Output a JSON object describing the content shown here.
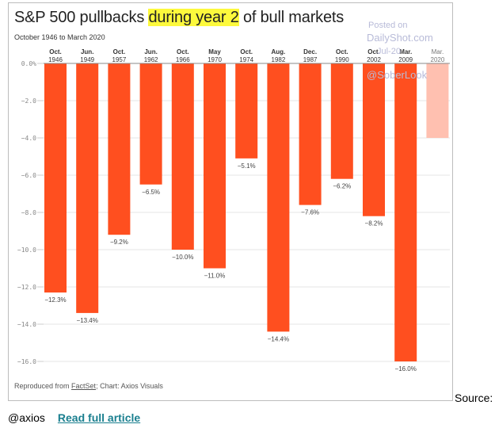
{
  "chart_data": {
    "type": "bar",
    "title_parts": [
      "S&P 500 pullbacks ",
      "during year 2",
      " of bull markets"
    ],
    "subtitle": "October 1946 to March 2020",
    "categories": [
      {
        "month": "Oct.",
        "year": "1946"
      },
      {
        "month": "Jun.",
        "year": "1949"
      },
      {
        "month": "Oct.",
        "year": "1957"
      },
      {
        "month": "Jun.",
        "year": "1962"
      },
      {
        "month": "Oct.",
        "year": "1966"
      },
      {
        "month": "May",
        "year": "1970"
      },
      {
        "month": "Oct.",
        "year": "1974"
      },
      {
        "month": "Aug.",
        "year": "1982"
      },
      {
        "month": "Dec.",
        "year": "1987"
      },
      {
        "month": "Oct.",
        "year": "1990"
      },
      {
        "month": "Oct.",
        "year": "2002"
      },
      {
        "month": "Mar.",
        "year": "2009"
      },
      {
        "month": "Mar.",
        "year": "2020"
      }
    ],
    "values": [
      -12.3,
      -13.4,
      -9.2,
      -6.5,
      -10.0,
      -11.0,
      -5.1,
      -14.4,
      -7.6,
      -6.2,
      -8.2,
      -16.0,
      -4.0
    ],
    "data_labels": [
      "−12.3%",
      "−13.4%",
      "−9.2%",
      "−6.5%",
      "−10.0%",
      "−11.0%",
      "−5.1%",
      "−14.4%",
      "−7.6%",
      "−6.2%",
      "−8.2%",
      "−16.0%",
      ""
    ],
    "highlight_last_light": true,
    "yticks": [
      0,
      -2,
      -4,
      -6,
      -8,
      -10,
      -12,
      -14,
      -16
    ],
    "ytick_labels": [
      "0.0%",
      "−2.0",
      "−4.0",
      "−6.0",
      "−8.0",
      "−10.0",
      "−12.0",
      "−14.0",
      "−16.0"
    ],
    "ylim": [
      -16.5,
      0
    ],
    "xlabel": "",
    "ylabel": "",
    "grid": true,
    "colors": {
      "bar": "#ff4f1f",
      "bar_light": "#ffc0b0",
      "highlight": "#fdf93c"
    }
  },
  "footer": {
    "prefix": "Reproduced from ",
    "link": "FactSet",
    "suffix": "; Chart: Axios Visuals"
  },
  "watermark": {
    "line1": "Posted on",
    "line2": "DailyShot.com",
    "line3": "Jul-20",
    "line4": "@SoberLook"
  },
  "page": {
    "source_label": "Source:",
    "handle": "@axios",
    "read_more": "Read full article"
  }
}
